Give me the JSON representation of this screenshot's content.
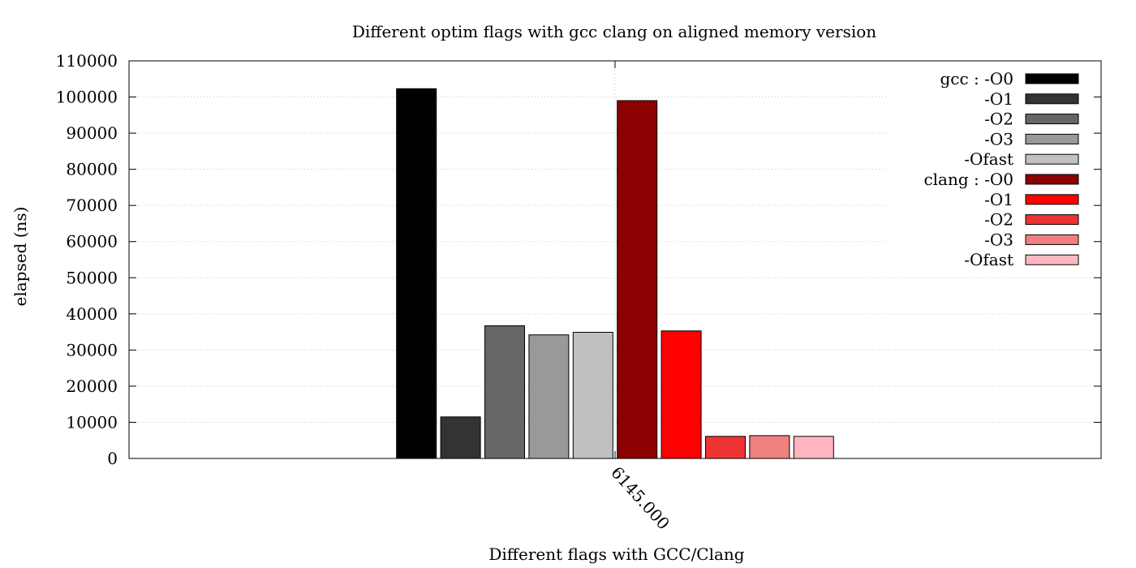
{
  "chart_data": {
    "type": "bar",
    "title": "Different optim flags with gcc  clang on aligned memory version",
    "xlabel": "Different flags with GCC/Clang",
    "ylabel": "elapsed (ns)",
    "categories": [
      "6145.000"
    ],
    "ylim": [
      0,
      110000
    ],
    "yticks": [
      0,
      10000,
      20000,
      30000,
      40000,
      50000,
      60000,
      70000,
      80000,
      90000,
      100000,
      110000
    ],
    "grid": true,
    "legend_position": "top-right",
    "series": [
      {
        "name": "gcc : -O0",
        "color": "#000000",
        "values": [
          102300
        ]
      },
      {
        "name": "-O1",
        "color": "#333333",
        "values": [
          11500
        ]
      },
      {
        "name": "-O2",
        "color": "#666666",
        "values": [
          36700
        ]
      },
      {
        "name": "-O3",
        "color": "#999999",
        "values": [
          34200
        ]
      },
      {
        "name": "-Ofast",
        "color": "#c0c0c0",
        "values": [
          34900
        ]
      },
      {
        "name": "clang : -O0",
        "color": "#8b0000",
        "values": [
          99000
        ]
      },
      {
        "name": "-O1",
        "color": "#ff0000",
        "values": [
          35300
        ]
      },
      {
        "name": "-O2",
        "color": "#ee3333",
        "values": [
          6100
        ]
      },
      {
        "name": "-O3",
        "color": "#f08080",
        "values": [
          6300
        ]
      },
      {
        "name": "-Ofast",
        "color": "#ffb6c1",
        "values": [
          6100
        ]
      }
    ]
  }
}
